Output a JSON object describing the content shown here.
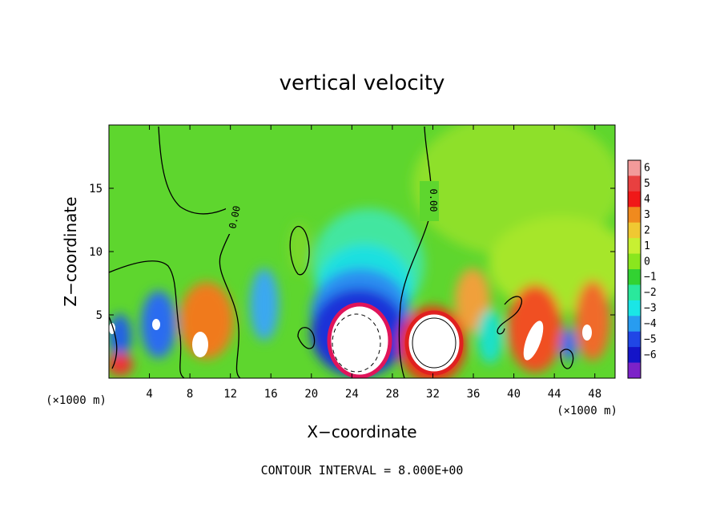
{
  "chart_data": {
    "type": "heatmap",
    "title": "vertical velocity",
    "xlabel": "X−coordinate",
    "ylabel": "Z−coordinate",
    "x_unit_left": "(×1000 m)",
    "x_unit_right": "(×1000 m)",
    "xlim": [
      0,
      50
    ],
    "ylim": [
      0,
      20
    ],
    "xticks": [
      4,
      8,
      12,
      16,
      20,
      24,
      28,
      32,
      36,
      40,
      44,
      48
    ],
    "yticks": [
      5,
      10,
      15
    ],
    "contour_interval_text": "CONTOUR INTERVAL = 8.000E+00",
    "contour_labels": [
      "0.00",
      "0.00"
    ],
    "colorbar": {
      "levels": [
        6,
        5,
        4,
        3,
        2,
        1,
        0,
        -1,
        -2,
        -3,
        -4,
        -5,
        -6
      ],
      "colors": [
        "#f29a9a",
        "#e84040",
        "#f01818",
        "#f08a1e",
        "#f0c832",
        "#c8f032",
        "#8ae61e",
        "#32d232",
        "#2ae89c",
        "#1ae6e6",
        "#289cf0",
        "#2046e6",
        "#1414c8",
        "#7c22c8"
      ]
    },
    "features": [
      {
        "kind": "updraft",
        "x": 31.5,
        "z": 3.0,
        "strength": 7.5
      },
      {
        "kind": "downdraft",
        "x": 25.0,
        "z": 3.0,
        "strength": -7.5
      },
      {
        "kind": "updraft",
        "x": 9.0,
        "z": 3.0,
        "strength": 5.0
      },
      {
        "kind": "updraft",
        "x": 42.0,
        "z": 2.5,
        "strength": 5.0
      },
      {
        "kind": "downdraft",
        "x": 5.0,
        "z": 4.5,
        "strength": -4.5
      },
      {
        "kind": "updraft",
        "x": 1.0,
        "z": 1.0,
        "strength": 4.0
      },
      {
        "kind": "downdraft",
        "x": 15.0,
        "z": 5.0,
        "strength": -3.0
      },
      {
        "kind": "updraft",
        "x": 47.0,
        "z": 4.0,
        "strength": 4.0
      }
    ]
  }
}
